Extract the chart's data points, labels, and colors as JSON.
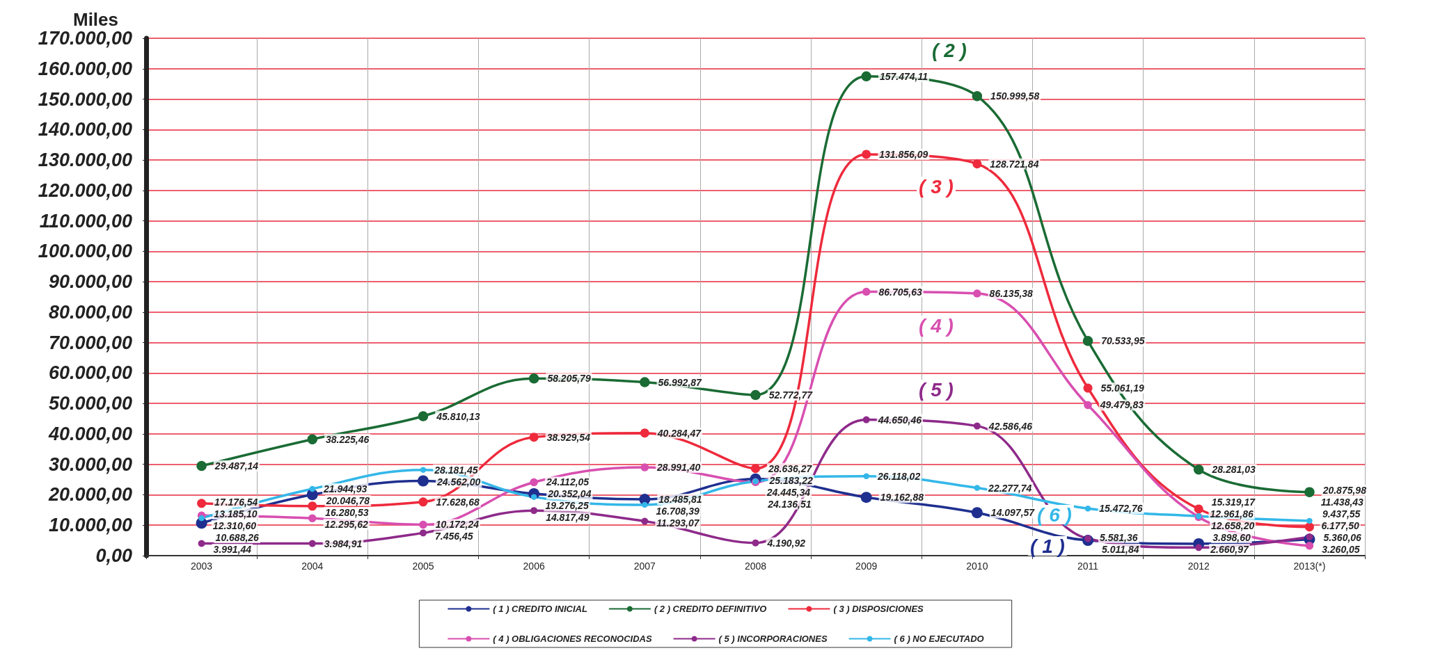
{
  "chart_data": {
    "type": "line",
    "ylabel": "Miles",
    "categories": [
      "2003",
      "2004",
      "2005",
      "2006",
      "2007",
      "2008",
      "2009",
      "2010",
      "2011",
      "2012",
      "2013(*)"
    ],
    "series": [
      {
        "name": "( 1 ) CREDITO INICIAL",
        "color": "#1f2f8f",
        "values": [
          10688.26,
          20046.78,
          24562.0,
          20352.04,
          18485.81,
          25183.22,
          19162.88,
          14097.57,
          5011.84,
          3898.6,
          5360.06
        ],
        "value_labels": [
          "10.688,26",
          "20.046,78",
          "24.562,00",
          "20.352,04",
          "18.485,81",
          "25.183,22",
          "19.162,88",
          "14.097,57",
          "5.011,84",
          "3.898,60",
          "5.360,06"
        ]
      },
      {
        "name": "( 2 ) CREDITO DEFINITIVO",
        "color": "#1a6b34",
        "values": [
          29487.14,
          38225.46,
          45810.13,
          58205.79,
          56992.87,
          52772.77,
          157474.11,
          150999.58,
          70533.95,
          28281.03,
          20875.98
        ],
        "value_labels": [
          "29.487,14",
          "38.225,46",
          "45.810,13",
          "58.205,79",
          "56.992,87",
          "52.772,77",
          "157.474,11",
          "150.999,58",
          "70.533,95",
          "28.281,03",
          "20.875,98"
        ]
      },
      {
        "name": "( 3 ) DISPOSICIONES",
        "color": "#ee2a3c",
        "values": [
          17176.54,
          16280.53,
          17628.68,
          38929.54,
          40284.47,
          28636.27,
          131856.09,
          128721.84,
          55061.19,
          15319.17,
          9437.55
        ],
        "value_labels": [
          "17.176,54",
          "16.280,53",
          "17.628,68",
          "38.929,54",
          "40.284,47",
          "28.636,27",
          "131.856,09",
          "128.721,84",
          "55.061,19",
          "15.319,17",
          "9.437,55"
        ]
      },
      {
        "name": "( 4 ) OBLIGACIONES RECONOCIDAS",
        "color": "#d84fb0",
        "values": [
          13185.1,
          12295.62,
          10172.24,
          24112.05,
          28991.4,
          24136.51,
          86705.63,
          86135.38,
          49479.83,
          12658.2,
          3260.05
        ],
        "value_labels": [
          "13.185,10",
          "12.295,62",
          "10.172,24",
          "24.112,05",
          "28.991,40",
          "24.136,51",
          "86.705,63",
          "86.135,38",
          "49.479,83",
          "12.658,20",
          "3.260,05"
        ]
      },
      {
        "name": "( 5 ) INCORPORACIONES",
        "color": "#8e2a8a",
        "values": [
          3991.44,
          3984.91,
          7456.45,
          14817.49,
          11293.07,
          4190.92,
          44650.46,
          42586.46,
          5581.36,
          2660.97,
          6177.5
        ],
        "value_labels": [
          "3.991,44",
          "3.984,91",
          "7.456,45",
          "14.817,49",
          "11.293,07",
          "4.190,92",
          "44.650,46",
          "42.586,46",
          "5.581,36",
          "2.660,97",
          "6.177,50"
        ]
      },
      {
        "name": "( 6 ) NO EJECUTADO",
        "color": "#33b7e8",
        "values": [
          12310.6,
          21944.93,
          28181.45,
          19276.25,
          16708.39,
          24445.34,
          26118.02,
          22277.74,
          15472.76,
          12961.86,
          11438.43
        ],
        "value_labels": [
          "12.310,60",
          "21.944,93",
          "28.181,45",
          "19.276,25",
          "16.708,39",
          "24.445,34",
          "26.118,02",
          "22.277,74",
          "15.472,76",
          "12.961,86",
          "11.438,43"
        ]
      }
    ],
    "annotations": [
      "( 1 )",
      "( 2 )",
      "( 3 )",
      "( 4 )",
      "( 5 )",
      "( 6 )"
    ],
    "ylim": [
      0,
      170000
    ],
    "yticks": [
      {
        "value": 0,
        "label": "0,00"
      },
      {
        "value": 10000,
        "label": "10.000,00"
      },
      {
        "value": 20000,
        "label": "20.000,00"
      },
      {
        "value": 30000,
        "label": "30.000,00"
      },
      {
        "value": 40000,
        "label": "40.000,00"
      },
      {
        "value": 50000,
        "label": "50.000,00"
      },
      {
        "value": 60000,
        "label": "60.000,00"
      },
      {
        "value": 70000,
        "label": "70.000,00"
      },
      {
        "value": 80000,
        "label": "80.000,00"
      },
      {
        "value": 90000,
        "label": "90.000,00"
      },
      {
        "value": 100000,
        "label": "100.000,00"
      },
      {
        "value": 110000,
        "label": "110.000,00"
      },
      {
        "value": 120000,
        "label": "120.000,00"
      },
      {
        "value": 130000,
        "label": "130.000,00"
      },
      {
        "value": 140000,
        "label": "140.000,00"
      },
      {
        "value": 150000,
        "label": "150.000,00"
      },
      {
        "value": 160000,
        "label": "160.000,00"
      },
      {
        "value": 170000,
        "label": "170.000,00"
      }
    ],
    "grid": true,
    "legend": "bottom",
    "marker": "circle"
  }
}
